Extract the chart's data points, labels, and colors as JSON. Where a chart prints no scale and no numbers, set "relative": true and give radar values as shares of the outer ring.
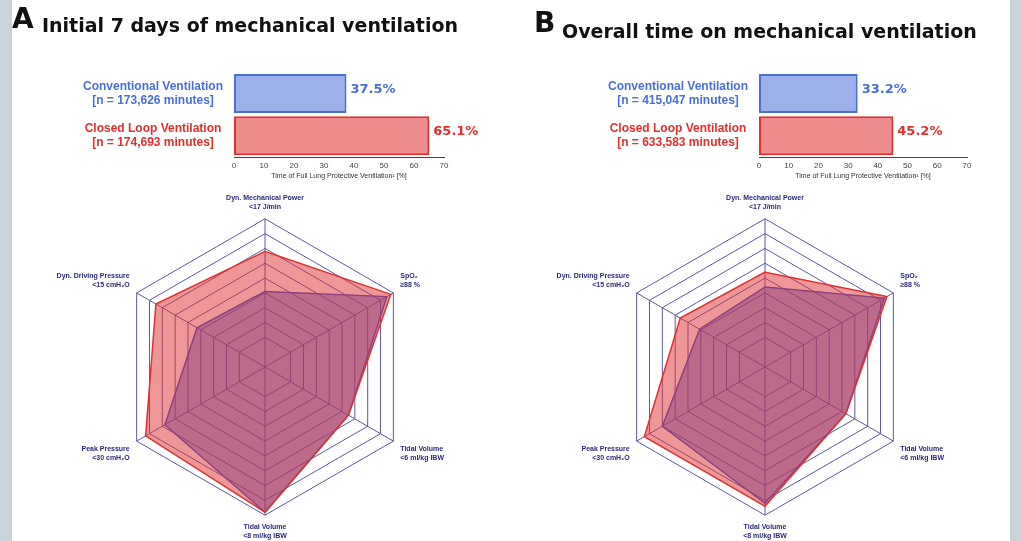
{
  "chart_data": [
    {
      "type": "bar",
      "orientation": "horizontal",
      "title": "Initial 7 days of mechanical ventilation",
      "annotations": [
        "A"
      ],
      "categories": [
        "Conventional Ventilation\n[n = 173,626 minutes]",
        "Closed Loop Ventilation\n[n = 174,693 minutes]"
      ],
      "values": [
        37.5,
        65.1
      ],
      "colors": [
        "#4a6fd8",
        "#e03030"
      ],
      "value_labels": [
        "37.5%",
        "65.1%"
      ],
      "xlabel": "Time of Full Lung Protective Ventilation¹ [%]",
      "xlim": [
        0,
        70
      ],
      "xticks": [
        0,
        10,
        20,
        30,
        40,
        50,
        60,
        70
      ],
      "grid": false
    },
    {
      "type": "radar",
      "relative": true,
      "grid": true,
      "categories": [
        "Dyn. Mechanical Power\n<17 J/min",
        "SpO₂\n≥88 %",
        "Tidal Volume\n<6 ml/kg IBW",
        "Tidal Volume\n<8 ml/kg IBW",
        "Peak Pressure\n<30 cmH₂O",
        "Dyn. Driving Pressure\n<15 cmH₂O"
      ],
      "series": [
        {
          "color": "#e03030",
          "values": [
            0.78,
            0.98,
            0.65,
            0.98,
            0.93,
            0.85
          ]
        },
        {
          "color": "#3a50d0",
          "values": [
            0.51,
            0.95,
            0.65,
            0.98,
            0.78,
            0.53
          ]
        }
      ]
    },
    {
      "type": "bar",
      "orientation": "horizontal",
      "title": "Overall time on mechanical ventilation",
      "annotations": [
        "B"
      ],
      "categories": [
        "Conventional Ventilation\n[n = 415,047 minutes]",
        "Closed Loop Ventilation\n[n = 633,583 minutes]"
      ],
      "values": [
        33.2,
        45.2
      ],
      "colors": [
        "#4a6fd8",
        "#e03030"
      ],
      "value_labels": [
        "33.2%",
        "45.2%"
      ],
      "xlabel": "Time of Full Lung Protective Ventilation¹ [%]",
      "xlim": [
        0,
        70
      ],
      "xticks": [
        0,
        10,
        20,
        30,
        40,
        50,
        60,
        70
      ],
      "grid": false
    },
    {
      "type": "radar",
      "relative": true,
      "grid": true,
      "categories": [
        "Dyn. Mechanical Power\n<17 J/min",
        "SpO₂\n≥88 %",
        "Tidal Volume\n<6 ml/kg IBW",
        "Tidal Volume\n<8 ml/kg IBW",
        "Peak Pressure\n<30 cmH₂O",
        "Dyn. Driving Pressure\n<15 cmH₂O"
      ],
      "series": [
        {
          "color": "#e03030",
          "values": [
            0.64,
            0.95,
            0.63,
            0.94,
            0.94,
            0.66
          ]
        },
        {
          "color": "#3a50d0",
          "values": [
            0.54,
            0.93,
            0.63,
            0.92,
            0.8,
            0.51
          ]
        }
      ]
    }
  ]
}
